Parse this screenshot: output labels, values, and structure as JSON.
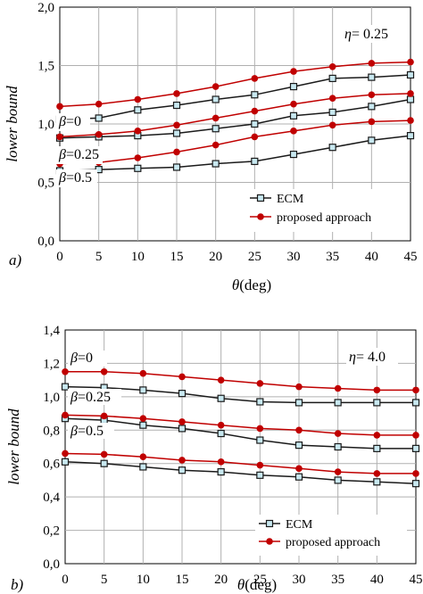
{
  "colors": {
    "ecm": "#1a1a1a",
    "proposed": "#c00000",
    "marker_fill": "#c8e8f0",
    "grid": "#b0b0b0"
  },
  "chart_data": [
    {
      "panel_label": "a)",
      "type": "line",
      "x": [
        0,
        5,
        10,
        15,
        20,
        25,
        30,
        35,
        40,
        45
      ],
      "xlim": [
        0,
        45
      ],
      "ylim": [
        0.0,
        2.0
      ],
      "xticks": [
        "0",
        "5",
        "10",
        "15",
        "20",
        "25",
        "30",
        "35",
        "40",
        "45"
      ],
      "yticks": [
        "0,0",
        "0,5",
        "1,0",
        "1,5",
        "2,0"
      ],
      "xlabel_symbol": "θ",
      "xlabel_unit": "(deg)",
      "ylabel": "lower bound",
      "grid": true,
      "legend_position": "bottom-right",
      "legend": [
        "ECM",
        "proposed approach"
      ],
      "eta_symbol": "η",
      "eta_value": "= 0.25",
      "beta_symbol": "β",
      "beta_labels": [
        "=0",
        "=0.25",
        "=0.5"
      ],
      "series": [
        {
          "name": "ECM",
          "group": "β=0",
          "values": [
            1.04,
            1.05,
            1.12,
            1.16,
            1.21,
            1.25,
            1.32,
            1.39,
            1.4,
            1.42
          ]
        },
        {
          "name": "ECM",
          "group": "β=0.25",
          "values": [
            0.88,
            0.89,
            0.9,
            0.92,
            0.96,
            1.0,
            1.07,
            1.1,
            1.15,
            1.21
          ]
        },
        {
          "name": "ECM",
          "group": "β=0.5",
          "values": [
            0.6,
            0.61,
            0.62,
            0.63,
            0.66,
            0.68,
            0.74,
            0.8,
            0.86,
            0.9
          ]
        },
        {
          "name": "proposed approach",
          "group": "β=0",
          "values": [
            1.15,
            1.17,
            1.21,
            1.26,
            1.32,
            1.39,
            1.45,
            1.49,
            1.52,
            1.53
          ]
        },
        {
          "name": "proposed approach",
          "group": "β=0.25",
          "values": [
            0.89,
            0.91,
            0.94,
            0.99,
            1.05,
            1.11,
            1.17,
            1.22,
            1.25,
            1.26
          ]
        },
        {
          "name": "proposed approach",
          "group": "β=0.5",
          "values": [
            0.66,
            0.67,
            0.71,
            0.76,
            0.82,
            0.89,
            0.94,
            0.99,
            1.02,
            1.03
          ]
        }
      ]
    },
    {
      "panel_label": "b)",
      "type": "line",
      "x": [
        0,
        5,
        10,
        15,
        20,
        25,
        30,
        35,
        40,
        45
      ],
      "xlim": [
        0,
        45
      ],
      "ylim": [
        0.0,
        1.4
      ],
      "xticks": [
        "0",
        "5",
        "10",
        "15",
        "20",
        "25",
        "30",
        "35",
        "40",
        "45"
      ],
      "yticks": [
        "0,0",
        "0,2",
        "0,4",
        "0,6",
        "0,8",
        "1,0",
        "1,2",
        "1,4"
      ],
      "xlabel_symbol": "θ",
      "xlabel_unit": "(deg)",
      "ylabel": "lower bound",
      "grid": true,
      "legend_position": "bottom-right",
      "legend": [
        "ECM",
        "proposed approach"
      ],
      "eta_symbol": "η",
      "eta_value": "= 4.0",
      "beta_symbol": "β",
      "beta_labels": [
        "=0",
        "=0.25",
        "=0.5"
      ],
      "series": [
        {
          "name": "ECM",
          "group": "β=0",
          "values": [
            1.06,
            1.055,
            1.04,
            1.02,
            0.99,
            0.97,
            0.965,
            0.965,
            0.965,
            0.965
          ]
        },
        {
          "name": "ECM",
          "group": "β=0.25",
          "values": [
            0.87,
            0.86,
            0.83,
            0.81,
            0.78,
            0.74,
            0.71,
            0.7,
            0.69,
            0.69
          ]
        },
        {
          "name": "ECM",
          "group": "β=0.5",
          "values": [
            0.61,
            0.6,
            0.58,
            0.56,
            0.55,
            0.53,
            0.52,
            0.5,
            0.49,
            0.48
          ]
        },
        {
          "name": "proposed approach",
          "group": "β=0",
          "values": [
            1.15,
            1.15,
            1.14,
            1.12,
            1.1,
            1.08,
            1.06,
            1.05,
            1.04,
            1.04
          ]
        },
        {
          "name": "proposed approach",
          "group": "β=0.25",
          "values": [
            0.89,
            0.885,
            0.87,
            0.85,
            0.83,
            0.81,
            0.8,
            0.78,
            0.77,
            0.77
          ]
        },
        {
          "name": "proposed approach",
          "group": "β=0.5",
          "values": [
            0.66,
            0.655,
            0.64,
            0.62,
            0.61,
            0.59,
            0.57,
            0.55,
            0.54,
            0.54
          ]
        }
      ]
    }
  ]
}
